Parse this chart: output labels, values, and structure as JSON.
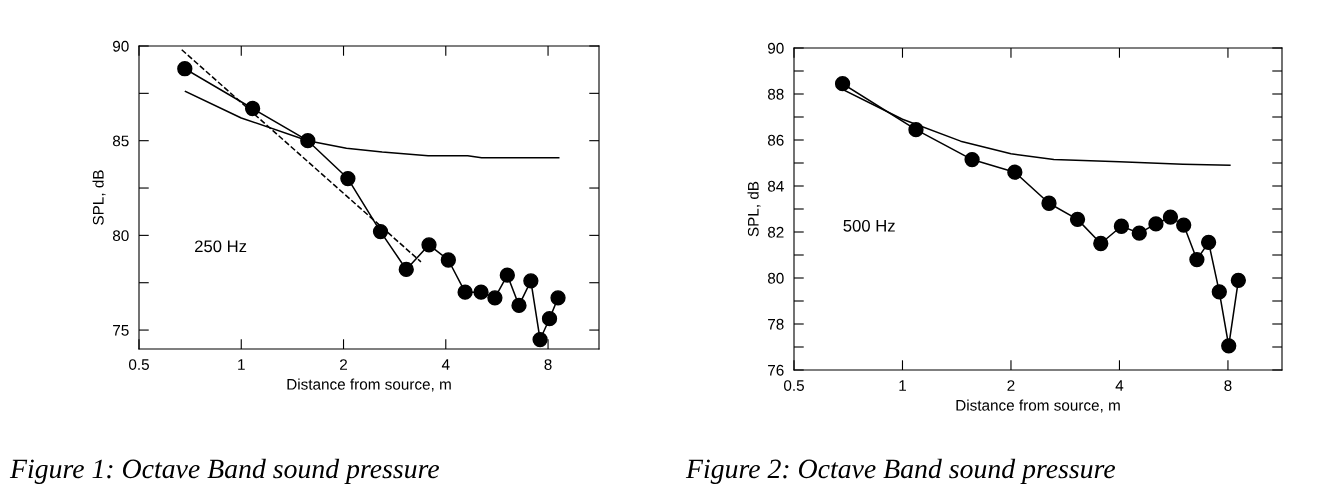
{
  "chart_data": [
    {
      "type": "line",
      "xlabel": "Distance from source, m",
      "ylabel": "SPL, dB",
      "log": "x",
      "xlim": [
        0.5,
        11.3
      ],
      "xticks": [
        0.5,
        1,
        2,
        4,
        8
      ],
      "ylim": [
        74,
        90
      ],
      "yticks": [
        75,
        {
          "value": 77.5,
          "label": null
        },
        80,
        {
          "value": 82.5,
          "label": null
        },
        85,
        {
          "value": 87.5,
          "label": null
        },
        90
      ],
      "grid": false,
      "legend": false,
      "annotations": [
        "250 Hz",
        "Figure 1: Octave Band sound pressure"
      ],
      "series": [
        {
          "color": "#000000",
          "marker": "circle",
          "line_style": "solid",
          "x": [
            0.682,
            1.08,
            1.57,
            2.06,
            2.57,
            3.06,
            3.57,
            4.07,
            4.56,
            5.08,
            5.58,
            6.07,
            6.57,
            7.12,
            7.58,
            8.08,
            8.56
          ],
          "values": [
            88.8,
            86.7,
            85.0,
            83.0,
            80.2,
            78.2,
            79.5,
            78.7,
            77.0,
            77.0,
            76.7,
            77.9,
            76.3,
            77.6,
            74.5,
            75.6,
            76.7
          ]
        },
        {
          "color": "#000000",
          "marker": "none",
          "line_style": "solid",
          "x": [
            0.685,
            1.0,
            1.57,
            2.04,
            2.6,
            3.55,
            4.64,
            5.1,
            8.6
          ],
          "values": [
            87.6,
            86.2,
            85.0,
            84.6,
            84.4,
            84.2,
            84.2,
            84.1,
            84.1
          ]
        },
        {
          "color": "#000000",
          "marker": "none",
          "line_style": "dashed",
          "x": [
            0.668,
            3.38
          ],
          "values": [
            89.8,
            78.6
          ]
        }
      ]
    },
    {
      "type": "line",
      "xlabel": "Distance from source, m",
      "ylabel": "SPL, dB",
      "log": "x",
      "xlim": [
        0.5,
        11.3
      ],
      "xticks": [
        0.5,
        1,
        2,
        4,
        8
      ],
      "ylim": [
        76,
        90
      ],
      "yticks": [
        76,
        {
          "value": 77,
          "label": null
        },
        78,
        {
          "value": 79,
          "label": null
        },
        80,
        {
          "value": 81,
          "label": null
        },
        82,
        {
          "value": 83,
          "label": null
        },
        84,
        {
          "value": 85,
          "label": null
        },
        86,
        {
          "value": 87,
          "label": null
        },
        88,
        {
          "value": 89,
          "label": null
        },
        90
      ],
      "grid": false,
      "legend": false,
      "annotations": [
        "500 Hz",
        "Figure 2: Octave Band sound pressure"
      ],
      "series": [
        {
          "color": "#000000",
          "marker": "circle",
          "line_style": "solid",
          "x": [
            0.682,
            1.09,
            1.56,
            2.05,
            2.55,
            3.06,
            3.55,
            4.05,
            4.54,
            5.05,
            5.54,
            6.03,
            6.56,
            7.07,
            7.57,
            8.04,
            8.55
          ],
          "values": [
            88.45,
            86.45,
            85.15,
            84.6,
            83.25,
            82.55,
            81.5,
            82.25,
            81.95,
            82.35,
            82.65,
            82.3,
            80.8,
            81.55,
            79.4,
            77.05,
            79.9
          ]
        },
        {
          "color": "#000000",
          "marker": "none",
          "line_style": "solid",
          "x": [
            0.682,
            1.0,
            1.45,
            2.0,
            2.63,
            4.0,
            6.0,
            8.1
          ],
          "values": [
            88.2,
            86.9,
            85.95,
            85.4,
            85.15,
            85.05,
            84.95,
            84.9
          ]
        }
      ]
    }
  ]
}
